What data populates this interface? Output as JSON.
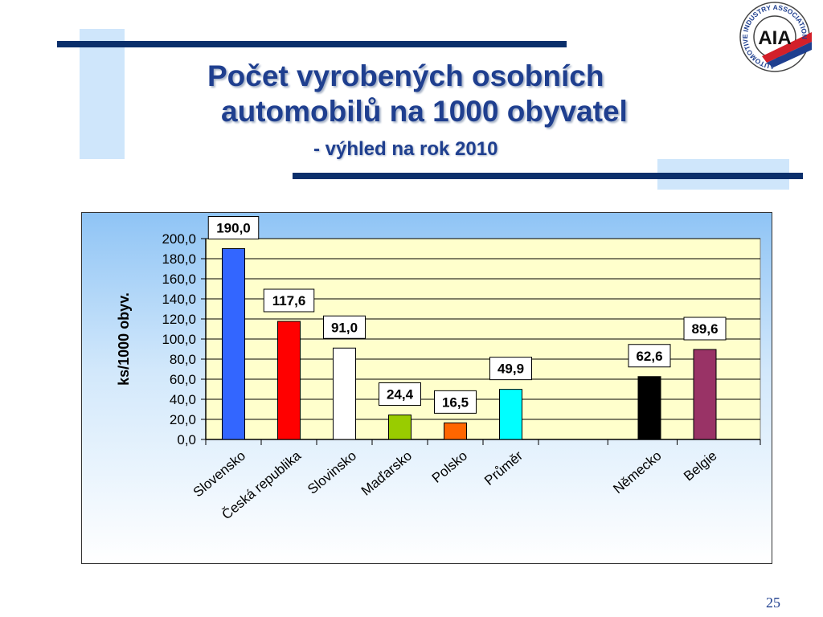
{
  "slide": {
    "title_line1": "Počet vyrobených osobních",
    "title_line2": "automobilů na 1000 obyvatel",
    "subtitle": "- výhled na rok 2010",
    "page_number": "25",
    "accent_color": "#1f3f8f",
    "decor_color": "#0b2f6b",
    "decor_light_color": "#cfe6fb"
  },
  "logo": {
    "center_text": "AIA",
    "ring_text": "AUTOMOTIVE INDUSTRY ASSOCIATION"
  },
  "chart_data": {
    "type": "bar",
    "title": "",
    "xlabel": "",
    "ylabel": "ks/1000 obyv.",
    "ylim": [
      0,
      200
    ],
    "ytick_step": 20,
    "yticks": [
      "0,0",
      "20,0",
      "40,0",
      "60,0",
      "80,0",
      "100,0",
      "120,0",
      "140,0",
      "160,0",
      "180,0",
      "200,0"
    ],
    "grid": true,
    "plot_background": "#ffffcc",
    "categories": [
      "Slovensko",
      "Česká republika",
      "Slovinsko",
      "Maďarsko",
      "Polsko",
      "Průměr",
      "",
      "Německo",
      "Belgie"
    ],
    "values": [
      190.0,
      117.6,
      91.0,
      24.4,
      16.5,
      49.9,
      null,
      62.6,
      89.6
    ],
    "value_labels": [
      "190,0",
      "117,6",
      "91,0",
      "24,4",
      "16,5",
      "49,9",
      "",
      "62,6",
      "89,6"
    ],
    "colors": [
      "#3366ff",
      "#ff0000",
      "#ffffff",
      "#99cc00",
      "#ff6600",
      "#00ffff",
      "",
      "#000000",
      "#993366"
    ]
  }
}
